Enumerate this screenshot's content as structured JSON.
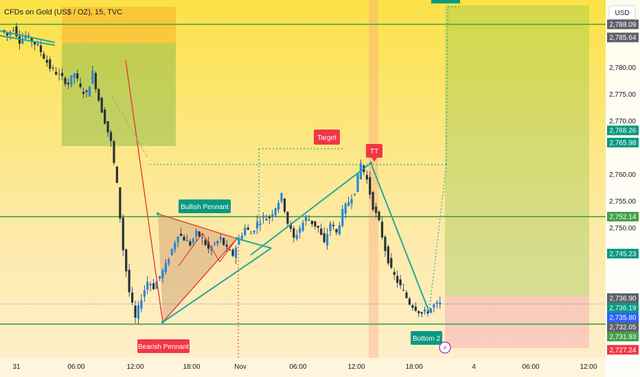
{
  "title": "CFDs on Gold (US$ / OZ), 15, TVC",
  "currency_button": "USD",
  "colors": {
    "up": "#26a69a",
    "down": "#ef5350",
    "candle_body": "#1e88e5",
    "teal_line": "#26a69a",
    "green_hline": "#43a047",
    "red_line": "#e53935",
    "label_green": "#089981",
    "label_red": "#f23645",
    "label_grey": "#5d606b"
  },
  "annotations": {
    "bullish_pennant": "Bullish Pennant",
    "bearish_pennant": "Bearish Pennant",
    "target": "Target",
    "tt": "TT",
    "bottom2": "Bottom 2",
    "lightning_icon": "⚡"
  },
  "chart_data": {
    "type": "candlestick",
    "title": "CFDs on Gold (US$ / OZ), 15, TVC",
    "ylim": [
      2726,
      2792
    ],
    "y_ticks": [
      "2,780.00",
      "2,775.00",
      "2,770.00",
      "2,760.00",
      "2,755.00",
      "2,750.00"
    ],
    "x_ticks": [
      "31",
      "06:00",
      "12:00",
      "18:00",
      "Nov",
      "06:00",
      "12:00",
      "18:00",
      "4",
      "06:00",
      "12:00"
    ],
    "price_labels": [
      {
        "text": "2,788.09",
        "value": 2788.09,
        "color": "#5d606b"
      },
      {
        "text": "2,785.64",
        "value": 2785.64,
        "color": "#5d606b"
      },
      {
        "text": "2,768.26",
        "value": 2768.26,
        "color": "#089981"
      },
      {
        "text": "2,765.98",
        "value": 2765.98,
        "color": "#089981"
      },
      {
        "text": "2,752.14",
        "value": 2752.14,
        "color": "#43a047"
      },
      {
        "text": "2,745.23",
        "value": 2745.23,
        "color": "#089981"
      },
      {
        "text": "2,736.90",
        "value": 2736.9,
        "color": "#5d606b"
      },
      {
        "text": "2,736.19",
        "value": 2736.19,
        "color": "#089981"
      },
      {
        "text": "2,735.80",
        "value": 2735.8,
        "color": "#2962ff"
      },
      {
        "text": "2,732.05",
        "value": 2732.05,
        "color": "#5d606b"
      },
      {
        "text": "2,731.93",
        "value": 2731.93,
        "color": "#43a047"
      },
      {
        "text": "2,727.24",
        "value": 2727.24,
        "color": "#f23645"
      }
    ],
    "horizontal_lines": [
      2788.09,
      2752.14,
      2732.05
    ],
    "price_path": [
      2787,
      2786,
      2787.5,
      2785,
      2786,
      2785,
      2784,
      2782,
      2780,
      2779,
      2778,
      2777,
      2779,
      2776,
      2775,
      2779,
      2774,
      2770,
      2766,
      2758,
      2746,
      2738,
      2733,
      2737,
      2740,
      2739,
      2741,
      2743,
      2746,
      2749,
      2748,
      2747,
      2749,
      2748,
      2746,
      2747,
      2748,
      2746,
      2745,
      2748,
      2750,
      2749,
      2751,
      2752,
      2752,
      2754,
      2756,
      2751,
      2748,
      2750,
      2752,
      2751,
      2750,
      2747,
      2751,
      2749,
      2753,
      2755,
      2757,
      2762,
      2759,
      2754,
      2751,
      2746,
      2742,
      2740,
      2738,
      2736,
      2735,
      2734,
      2734.5,
      2735.5,
      2735.8
    ]
  }
}
